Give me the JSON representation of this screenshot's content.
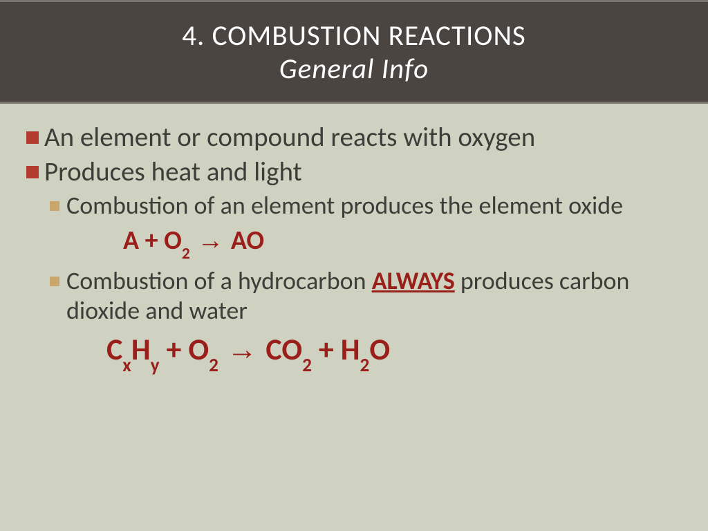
{
  "colors": {
    "slide_bg": "#cfd2c1",
    "title_bg": "#4b4541",
    "title_border": "#7a746e",
    "title_text": "#ffffff",
    "body_text": "#3f3d39",
    "bullet_lvl1": "#b23a2e",
    "bullet_lvl2": "#c9a66b",
    "accent_red": "#9a1f1a"
  },
  "typography": {
    "title_fontsize": 41,
    "lvl1_fontsize": 39,
    "lvl2_fontsize": 36,
    "formula_fontsize": 38,
    "formula_big_fontsize": 44,
    "font_family": "Calibri"
  },
  "title": {
    "line1": "4.  COMBUSTION REACTIONS",
    "line2": "General Info"
  },
  "bullets": {
    "b1": "An element or compound reacts with oxygen",
    "b2": "Produces heat and light",
    "b2a": "Combustion of an element produces the element oxide",
    "formula1": {
      "lhs_a": "A  + O",
      "lhs_sub": "2",
      "arrow": "  →  ",
      "rhs": "AO"
    },
    "b2b": {
      "pre": "Combustion of a hydrocarbon ",
      "always": "ALWAYS",
      "post": " produces carbon dioxide and water"
    },
    "formula2": {
      "c": "C",
      "x": "x",
      "h": "H",
      "y": "y",
      "plus1": "   + O",
      "o2sub": "2",
      "arrow": "  →  ",
      "co": "CO",
      "co2sub": "2",
      "plus2": " + H",
      "h2sub": "2",
      "o": "O"
    }
  }
}
